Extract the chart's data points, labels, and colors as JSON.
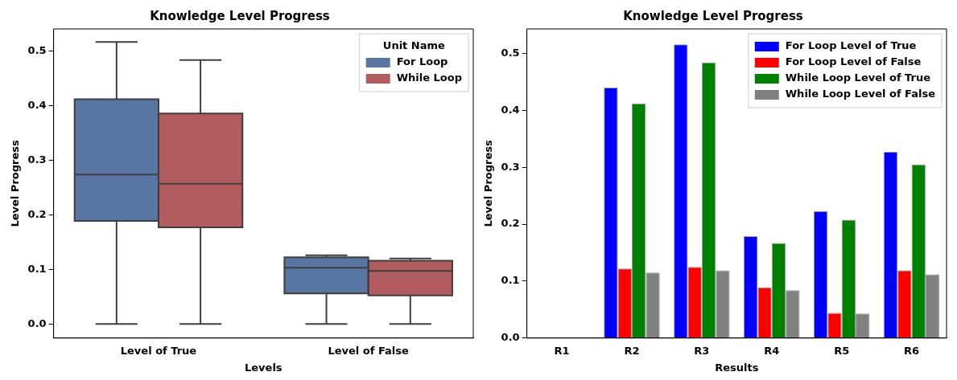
{
  "chart_data": [
    {
      "type": "box",
      "title": "Knowledge Level Progress",
      "xlabel": "Levels",
      "ylabel": "Level Progress",
      "legend_title": "Unit Name",
      "legend": "top right",
      "categories": [
        "Level of True",
        "Level of False"
      ],
      "ylim": [
        -0.026,
        0.541
      ],
      "yticks": [
        {
          "value": 0,
          "label": "0.0"
        },
        {
          "value": 0.1,
          "label": "0.1"
        },
        {
          "value": 0.2,
          "label": "0.2"
        },
        {
          "value": 0.3,
          "label": "0.3"
        },
        {
          "value": 0.4,
          "label": "0.4"
        },
        {
          "value": 0.5,
          "label": "0.5"
        }
      ],
      "grid": false,
      "series": [
        {
          "name": "For Loop",
          "color": "#5875a4",
          "boxes": [
            {
              "low": 0,
              "q1": 0.189,
              "median": 0.274,
              "q3": 0.412,
              "high": 0.517
            },
            {
              "low": 0,
              "q1": 0.056,
              "median": 0.103,
              "q3": 0.122,
              "high": 0.126
            }
          ]
        },
        {
          "name": "While Loop",
          "color": "#b35c60",
          "boxes": [
            {
              "low": 0,
              "q1": 0.177,
              "median": 0.257,
              "q3": 0.386,
              "high": 0.484
            },
            {
              "low": 0,
              "q1": 0.052,
              "median": 0.097,
              "q3": 0.116,
              "high": 0.12
            }
          ]
        }
      ]
    },
    {
      "type": "bar",
      "title": "Knowledge Level Progress",
      "xlabel": "Results",
      "ylabel": "Level Progress",
      "legend": "top right",
      "categories": [
        "R1",
        "R2",
        "R3",
        "R4",
        "R5",
        "R6"
      ],
      "ylim": [
        0,
        0.543
      ],
      "yticks": [
        {
          "value": 0,
          "label": "0.0"
        },
        {
          "value": 0.1,
          "label": "0.1"
        },
        {
          "value": 0.2,
          "label": "0.2"
        },
        {
          "value": 0.3,
          "label": "0.3"
        },
        {
          "value": 0.4,
          "label": "0.4"
        },
        {
          "value": 0.5,
          "label": "0.5"
        }
      ],
      "grid": false,
      "series": [
        {
          "name": "For Loop Level of True",
          "color": "#0000ff",
          "values": [
            0,
            0.44,
            0.516,
            0.179,
            0.223,
            0.327
          ]
        },
        {
          "name": "For Loop Level of False",
          "color": "#ff0000",
          "values": [
            0,
            0.122,
            0.125,
            0.089,
            0.044,
            0.119
          ]
        },
        {
          "name": "While Loop Level of True",
          "color": "#008000",
          "values": [
            0,
            0.412,
            0.484,
            0.167,
            0.208,
            0.305
          ]
        },
        {
          "name": "While Loop Level of False",
          "color": "#808080",
          "values": [
            0,
            0.115,
            0.119,
            0.084,
            0.043,
            0.112
          ]
        }
      ]
    }
  ]
}
